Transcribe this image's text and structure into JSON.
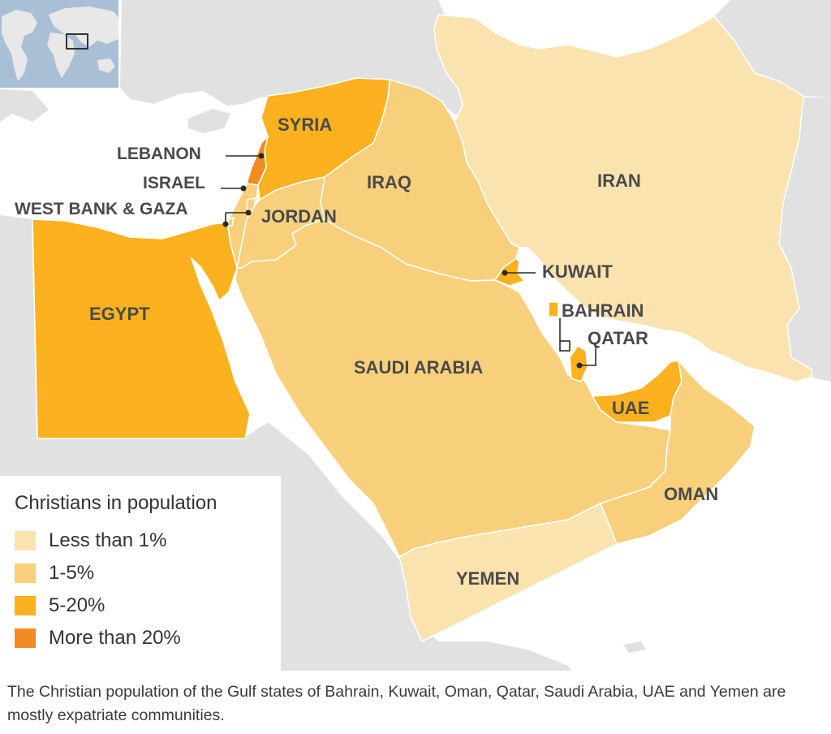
{
  "colors": {
    "sea": "#ffffff",
    "land_outside": "#e1e1e1",
    "less_than_1": "#fbe3b0",
    "one_to_five": "#f8d07c",
    "five_to_twenty": "#fbb21e",
    "more_than_20": "#f28b22",
    "inset_sea": "#a9bfd6",
    "inset_land": "#e8e8e8"
  },
  "countries": {
    "syria": {
      "label": "SYRIA",
      "category": "5-20%"
    },
    "lebanon": {
      "label": "LEBANON",
      "category": "More than 20%"
    },
    "israel": {
      "label": "ISRAEL",
      "category": "1-5%"
    },
    "west_bank_gaza": {
      "label": "WEST BANK & GAZA",
      "category": "1-5%"
    },
    "jordan": {
      "label": "JORDAN",
      "category": "1-5%"
    },
    "iraq": {
      "label": "IRAQ",
      "category": "1-5%"
    },
    "iran": {
      "label": "IRAN",
      "category": "Less than 1%"
    },
    "kuwait": {
      "label": "KUWAIT",
      "category": "5-20%"
    },
    "bahrain": {
      "label": "BAHRAIN",
      "category": "5-20%"
    },
    "qatar": {
      "label": "QATAR",
      "category": "5-20%"
    },
    "uae": {
      "label": "UAE",
      "category": "5-20%"
    },
    "egypt": {
      "label": "EGYPT",
      "category": "5-20%"
    },
    "saudi_arabia": {
      "label": "SAUDI ARABIA",
      "category": "1-5%"
    },
    "oman": {
      "label": "OMAN",
      "category": "1-5%"
    },
    "yemen": {
      "label": "YEMEN",
      "category": "Less than 1%"
    }
  },
  "legend": {
    "title": "Christians in population",
    "items": [
      {
        "label": "Less than 1%",
        "color": "#fbe3b0"
      },
      {
        "label": "1-5%",
        "color": "#f8d07c"
      },
      {
        "label": "5-20%",
        "color": "#fbb21e"
      },
      {
        "label": "More than 20%",
        "color": "#f28b22"
      }
    ]
  },
  "footnote": "The Christian population of the Gulf states of Bahrain, Kuwait, Oman, Qatar, Saudi Arabia, UAE and Yemen are mostly expatriate communities."
}
